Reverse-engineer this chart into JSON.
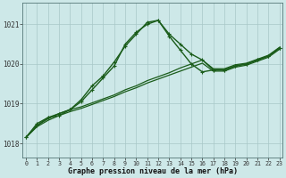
{
  "title": "Graphe pression niveau de la mer (hPa)",
  "background_color": "#cde8e8",
  "line_color": "#1a5c1a",
  "grid_color": "#a8c8c8",
  "x_ticks": [
    0,
    1,
    2,
    3,
    4,
    5,
    6,
    7,
    8,
    9,
    10,
    11,
    12,
    13,
    14,
    15,
    16,
    17,
    18,
    19,
    20,
    21,
    22,
    23
  ],
  "y_ticks": [
    1018,
    1019,
    1020,
    1021
  ],
  "ylim": [
    1017.65,
    1021.55
  ],
  "xlim": [
    -0.3,
    23.3
  ],
  "curve1_x": [
    0,
    1,
    2,
    3,
    4,
    5,
    6,
    7,
    8,
    9,
    10,
    11,
    12,
    13,
    14,
    15,
    16,
    17,
    18,
    19,
    20,
    21,
    22,
    23
  ],
  "curve1_y": [
    1018.15,
    1018.5,
    1018.65,
    1018.75,
    1018.85,
    1019.1,
    1019.45,
    1019.7,
    1020.05,
    1020.45,
    1020.75,
    1021.05,
    1021.1,
    1020.75,
    1020.5,
    1020.25,
    1020.1,
    1019.85,
    1019.85,
    1019.95,
    1020.0,
    1020.1,
    1020.2,
    1020.4
  ],
  "curve2_x": [
    0,
    1,
    2,
    3,
    4,
    5,
    6,
    7,
    8,
    9,
    10,
    11,
    12,
    13,
    14,
    15,
    16,
    17,
    18,
    19,
    20,
    21,
    22,
    23
  ],
  "curve2_y": [
    1018.15,
    1018.45,
    1018.65,
    1018.7,
    1018.85,
    1019.05,
    1019.35,
    1019.65,
    1019.95,
    1020.5,
    1020.8,
    1021.0,
    1021.1,
    1020.7,
    1020.35,
    1020.0,
    1019.8,
    1019.85,
    1019.85,
    1019.95,
    1020.0,
    1020.1,
    1020.2,
    1020.4
  ],
  "linear1_x": [
    0,
    1,
    2,
    3,
    4,
    5,
    6,
    7,
    8,
    9,
    10,
    11,
    12,
    13,
    14,
    15,
    16,
    17,
    18,
    19,
    20,
    21,
    22,
    23
  ],
  "linear1_y": [
    1018.15,
    1018.45,
    1018.62,
    1018.75,
    1018.85,
    1018.92,
    1019.02,
    1019.12,
    1019.22,
    1019.35,
    1019.45,
    1019.58,
    1019.68,
    1019.78,
    1019.9,
    1020.0,
    1020.1,
    1019.88,
    1019.88,
    1019.98,
    1020.02,
    1020.12,
    1020.22,
    1020.42
  ],
  "linear2_x": [
    0,
    1,
    2,
    3,
    4,
    5,
    6,
    7,
    8,
    9,
    10,
    11,
    12,
    13,
    14,
    15,
    16,
    17,
    18,
    19,
    20,
    21,
    22,
    23
  ],
  "linear2_y": [
    1018.15,
    1018.42,
    1018.58,
    1018.7,
    1018.8,
    1018.88,
    1018.98,
    1019.08,
    1019.18,
    1019.3,
    1019.4,
    1019.52,
    1019.62,
    1019.72,
    1019.82,
    1019.92,
    1020.02,
    1019.82,
    1019.82,
    1019.92,
    1019.97,
    1020.07,
    1020.17,
    1020.37
  ]
}
